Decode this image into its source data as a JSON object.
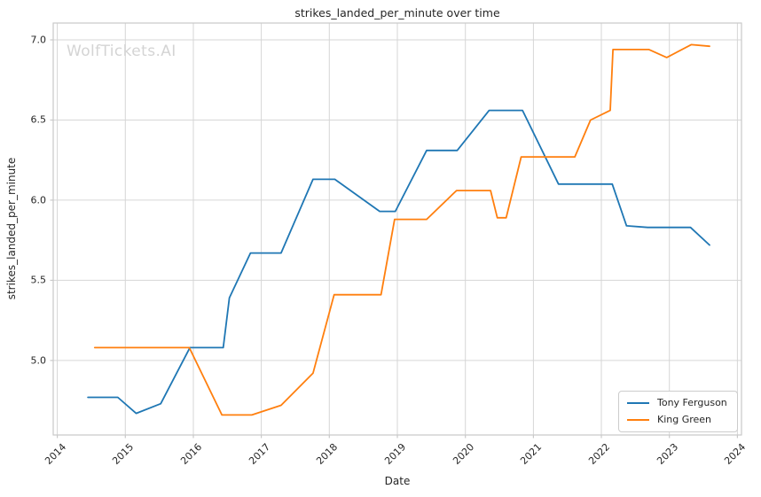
{
  "figure": {
    "watermark": "WolfTickets.AI"
  },
  "theme": {
    "background": "#ffffff",
    "grid_color": "#d6d6d6",
    "spine_color": "#c9c9c9",
    "text_color": "#262626",
    "watermark_color": "#d4d4d4"
  },
  "chart_data": {
    "type": "line",
    "title": "strikes_landed_per_minute over time",
    "xlabel": "Date",
    "ylabel": "strikes_landed_per_minute",
    "xlim": [
      2013.94,
      2024.06
    ],
    "ylim": [
      4.535,
      7.105
    ],
    "xticks": [
      2014,
      2015,
      2016,
      2017,
      2018,
      2019,
      2020,
      2021,
      2022,
      2023,
      2024
    ],
    "yticks": [
      5.0,
      5.5,
      6.0,
      6.5,
      7.0
    ],
    "grid": true,
    "legend_position": "lower right",
    "series": [
      {
        "name": "Tony Ferguson",
        "color": "#1f77b4",
        "points": [
          [
            2014.45,
            4.77
          ],
          [
            2014.89,
            4.77
          ],
          [
            2015.16,
            4.67
          ],
          [
            2015.52,
            4.73
          ],
          [
            2015.95,
            5.08
          ],
          [
            2016.44,
            5.08
          ],
          [
            2016.53,
            5.39
          ],
          [
            2016.84,
            5.67
          ],
          [
            2017.29,
            5.67
          ],
          [
            2017.76,
            6.13
          ],
          [
            2018.08,
            6.13
          ],
          [
            2018.74,
            5.93
          ],
          [
            2018.97,
            5.93
          ],
          [
            2019.43,
            6.31
          ],
          [
            2019.88,
            6.31
          ],
          [
            2020.35,
            6.56
          ],
          [
            2020.84,
            6.56
          ],
          [
            2021.37,
            6.1
          ],
          [
            2022.16,
            6.1
          ],
          [
            2022.37,
            5.84
          ],
          [
            2022.68,
            5.83
          ],
          [
            2023.31,
            5.83
          ],
          [
            2023.59,
            5.72
          ]
        ]
      },
      {
        "name": "King Green",
        "color": "#ff7f0e",
        "points": [
          [
            2014.55,
            5.08
          ],
          [
            2015.94,
            5.08
          ],
          [
            2016.42,
            4.66
          ],
          [
            2016.86,
            4.66
          ],
          [
            2017.29,
            4.72
          ],
          [
            2017.76,
            4.92
          ],
          [
            2018.07,
            5.41
          ],
          [
            2018.76,
            5.41
          ],
          [
            2018.96,
            5.88
          ],
          [
            2019.43,
            5.88
          ],
          [
            2019.87,
            6.06
          ],
          [
            2020.37,
            6.06
          ],
          [
            2020.47,
            5.89
          ],
          [
            2020.6,
            5.89
          ],
          [
            2020.82,
            6.27
          ],
          [
            2021.61,
            6.27
          ],
          [
            2021.84,
            6.5
          ],
          [
            2022.13,
            6.56
          ],
          [
            2022.17,
            6.94
          ],
          [
            2022.7,
            6.94
          ],
          [
            2022.96,
            6.89
          ],
          [
            2023.32,
            6.97
          ],
          [
            2023.59,
            6.96
          ]
        ]
      }
    ]
  }
}
